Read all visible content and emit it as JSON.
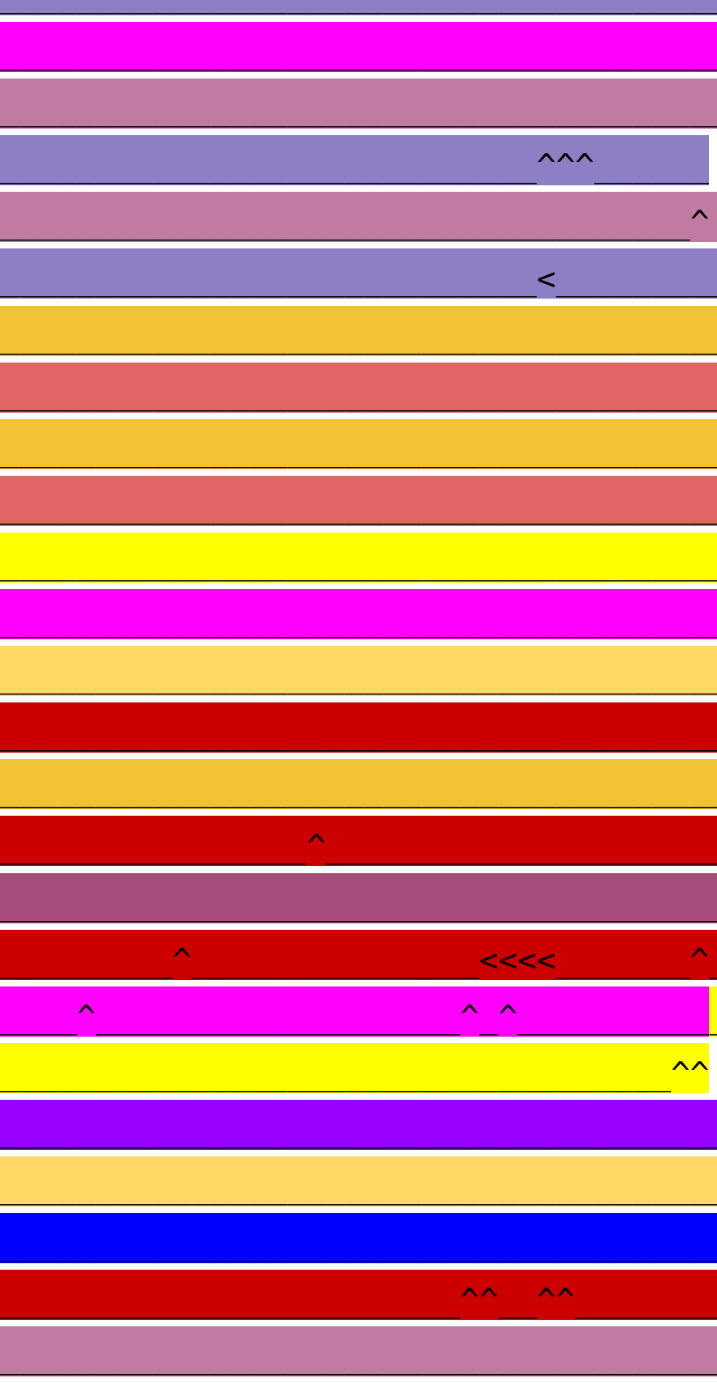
{
  "rows": [
    {
      "segments": [
        {
          "color": "#8c7fc4",
          "text": "______________________________________"
        }
      ]
    },
    {
      "segments": [
        {
          "color": "#ff00ff",
          "text": "______________________________________"
        }
      ]
    },
    {
      "segments": [
        {
          "color": "#c07ca0",
          "text": "______________________________________"
        }
      ]
    },
    {
      "segments": [
        {
          "color": "#8c7fc4",
          "text": "____________________________^^^______"
        }
      ]
    },
    {
      "segments": [
        {
          "color": "#c07ca0",
          "text": "____________________________________^ "
        }
      ]
    },
    {
      "segments": [
        {
          "color": "#8c7fc4",
          "text": "____________________________<_________"
        }
      ]
    },
    {
      "segments": [
        {
          "color": "#f1c232",
          "text": "______________________________________"
        }
      ]
    },
    {
      "segments": [
        {
          "color": "#e06666",
          "text": "______________________________________"
        }
      ]
    },
    {
      "segments": [
        {
          "color": "#f1c232",
          "text": "______________________________________"
        }
      ]
    },
    {
      "segments": [
        {
          "color": "#e06666",
          "text": "______________________________________"
        }
      ]
    },
    {
      "segments": [
        {
          "color": "#ffff00",
          "text": "______________________________________"
        }
      ]
    },
    {
      "segments": [
        {
          "color": "#ff00ff",
          "text": "______________________________________"
        }
      ]
    },
    {
      "segments": [
        {
          "color": "#ffd966",
          "text": "______________________________________"
        }
      ]
    },
    {
      "segments": [
        {
          "color": "#cc0000",
          "text": "______________________________________"
        }
      ]
    },
    {
      "segments": [
        {
          "color": "#f1c232",
          "text": "______________________________________"
        }
      ]
    },
    {
      "segments": [
        {
          "color": "#cc0000",
          "text": "________________^_____________________"
        }
      ]
    },
    {
      "segments": [
        {
          "color": "#a64d79",
          "text": "______________________________________"
        }
      ]
    },
    {
      "segments": [
        {
          "color": "#cc0000",
          "text": "_________^_______________<<<<_______^_"
        }
      ]
    },
    {
      "segments": [
        {
          "color": "#ff00ff",
          "text": "____^___________________^_^__________"
        },
        {
          "color": "#ffff00",
          "text": "_"
        }
      ]
    },
    {
      "segments": [
        {
          "color": "#ffff00",
          "text": "___________________________________^^"
        }
      ]
    },
    {
      "segments": [
        {
          "color": "#9900ff",
          "text": "______________________________________"
        }
      ]
    },
    {
      "segments": [
        {
          "color": "#ffd966",
          "text": "______________________________________"
        }
      ]
    },
    {
      "segments": [
        {
          "color": "#0000ff",
          "text": "______________________________________"
        }
      ]
    },
    {
      "segments": [
        {
          "color": "#cc0000",
          "text": "________________________^^__^^________"
        }
      ]
    },
    {
      "segments": [
        {
          "color": "#c07ca0",
          "text": "______________________________________"
        }
      ]
    }
  ]
}
